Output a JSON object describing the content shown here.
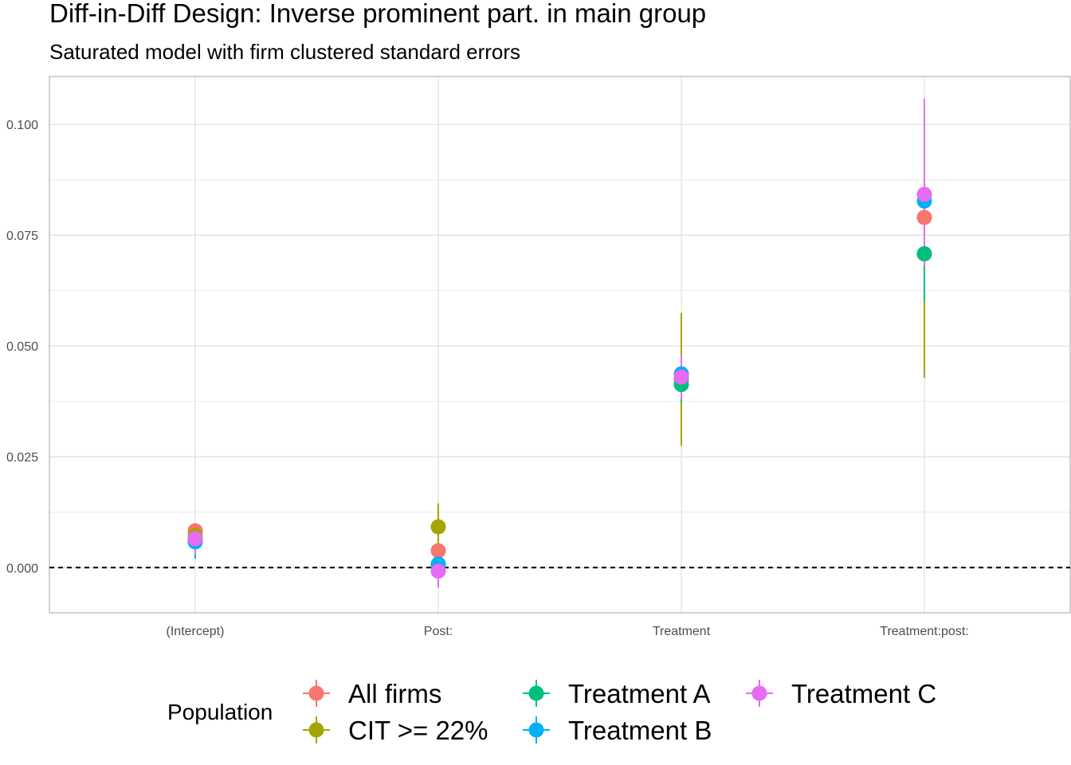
{
  "chart_data": {
    "type": "scatter",
    "title": "Diff-in-Diff Design: Inverse prominent part. in main group",
    "subtitle": "Saturated model with firm clustered standard errors",
    "xlabel": "",
    "ylabel": "",
    "categories": [
      "(Intercept)",
      "Post:",
      "Treatment",
      "Treatment:post:"
    ],
    "ylim": [
      -0.0102,
      0.1108
    ],
    "y_ticks": [
      0.0,
      0.025,
      0.05,
      0.075,
      0.1
    ],
    "y_tick_labels": [
      "0.000",
      "0.025",
      "0.050",
      "0.075",
      "0.100"
    ],
    "reference_line": {
      "y": 0,
      "style": "dashed"
    },
    "grid": true,
    "legend": {
      "title": "Population",
      "position": "bottom"
    },
    "series": [
      {
        "name": "All firms",
        "color": "#F8766D",
        "values": [
          0.0083,
          0.0038,
          0.0425,
          0.079
        ],
        "lower": [
          0.005,
          0.001,
          0.038,
          0.07
        ],
        "upper": [
          0.01,
          0.0065,
          0.046,
          0.088
        ]
      },
      {
        "name": "CIT >= 22%",
        "color": "#A3A500",
        "values": [
          0.0072,
          0.0092,
          0.0423,
          0.0708
        ],
        "lower": [
          0.0045,
          0.004,
          0.0275,
          0.0428
        ],
        "upper": [
          0.0098,
          0.0145,
          0.0575,
          0.099
        ]
      },
      {
        "name": "Treatment A",
        "color": "#00BF7D",
        "values": [
          0.0062,
          0.0005,
          0.0413,
          0.0708
        ],
        "lower": [
          0.003,
          -0.002,
          0.037,
          0.06
        ],
        "upper": [
          0.009,
          0.003,
          0.046,
          0.082
        ]
      },
      {
        "name": "Treatment B",
        "color": "#00B0F6",
        "values": [
          0.0058,
          0.0008,
          0.0437,
          0.0827
        ],
        "lower": [
          0.002,
          -0.0025,
          0.039,
          0.07
        ],
        "upper": [
          0.009,
          0.004,
          0.048,
          0.096
        ]
      },
      {
        "name": "Treatment C",
        "color": "#E76BF3",
        "values": [
          0.0065,
          -0.0008,
          0.043,
          0.0842
        ],
        "lower": [
          0.003,
          -0.0045,
          0.038,
          0.068
        ],
        "upper": [
          0.0095,
          0.0025,
          0.048,
          0.1058
        ]
      }
    ]
  }
}
